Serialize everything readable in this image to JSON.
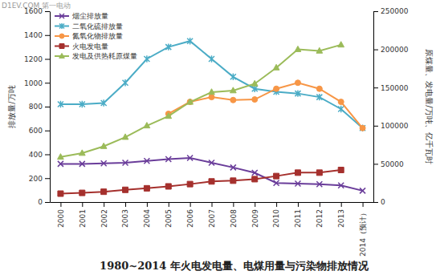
{
  "chart_data": {
    "type": "line",
    "title": "1980~2014 年火电发电量、电煤用量与污染物排放情况",
    "watermark": "D1EV.COM 第一电动",
    "y_label": "排放量/万吨",
    "y2_label": "原煤量、发电量/万吨、亿千瓦时",
    "categories": [
      "2000",
      "2001",
      "2002",
      "2003",
      "2004",
      "2005",
      "2006",
      "2007",
      "2008",
      "2009",
      "2010",
      "2011",
      "2012",
      "2013",
      "2014（预计）"
    ],
    "ylim": [
      0,
      1600
    ],
    "yticks": [
      0,
      200,
      400,
      600,
      800,
      1000,
      1200,
      1400,
      1600
    ],
    "y2lim": [
      0,
      250000
    ],
    "y2ticks": [
      0,
      50000,
      100000,
      150000,
      200000,
      250000
    ],
    "grid": false,
    "legend": "upper left",
    "series": [
      {
        "name": "烟尘排放量",
        "color": "#6a3d9a",
        "marker": "x",
        "line_style": "solid",
        "values": [
          320,
          320,
          325,
          330,
          345,
          360,
          370,
          330,
          290,
          245,
          160,
          155,
          150,
          140,
          95
        ]
      },
      {
        "name": "二氧化硫排放量",
        "color": "#4bacc6",
        "marker": "asterisk",
        "line_style": "solid",
        "values": [
          820,
          820,
          830,
          1000,
          1200,
          1300,
          1350,
          1200,
          1050,
          950,
          925,
          910,
          880,
          780,
          620
        ]
      },
      {
        "name": "氮氧化物排放量",
        "color": "#f79646",
        "marker": "circle",
        "line_style": "solid",
        "values": [
          null,
          null,
          null,
          null,
          null,
          740,
          840,
          880,
          855,
          860,
          950,
          1000,
          950,
          840,
          620
        ]
      },
      {
        "name": "火电发电量",
        "color": "#a5302d",
        "marker": "square",
        "line_style": "solid",
        "axis": "y2",
        "values": [
          11000,
          12000,
          13500,
          16000,
          18000,
          20500,
          23500,
          27000,
          28000,
          30000,
          34000,
          38500,
          38500,
          42000,
          null
        ]
      },
      {
        "name": "发电及供热耗原煤量",
        "color": "#9bbb59",
        "marker": "triangle",
        "line_style": "solid",
        "axis": "y2",
        "values": [
          59000,
          64000,
          73000,
          85000,
          100000,
          112500,
          131000,
          144000,
          146000,
          155000,
          176000,
          200000,
          198000,
          206000,
          null
        ]
      }
    ]
  }
}
